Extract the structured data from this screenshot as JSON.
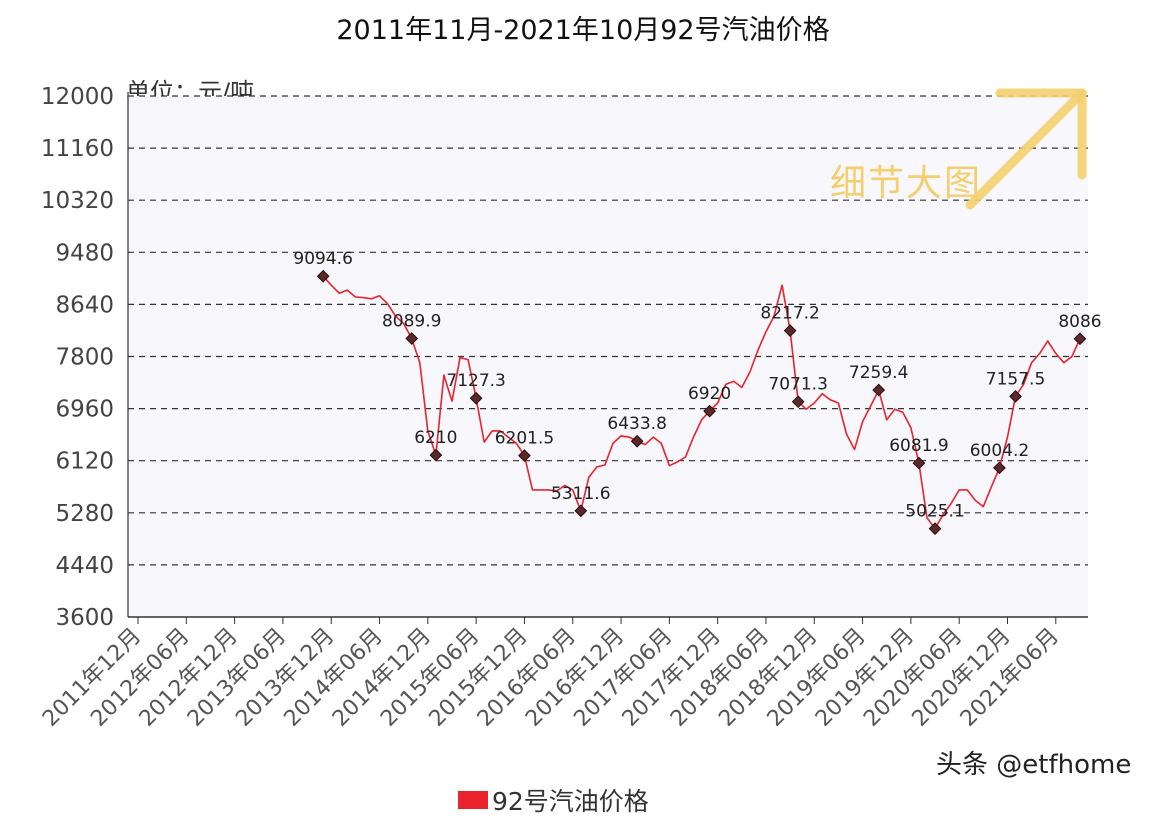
{
  "chart_data": {
    "type": "line",
    "title": "2011年11月-2021年10月92号汽油价格",
    "unit_label": "单位：元/吨",
    "ylim": [
      3600,
      12000
    ],
    "yticks": [
      12000,
      11160,
      10320,
      9480,
      8640,
      7800,
      6960,
      6120,
      5280,
      4440,
      3600
    ],
    "xticks": [
      "2011年12月",
      "2012年06月",
      "2012年12月",
      "2013年06月",
      "2013年12月",
      "2014年06月",
      "2014年12月",
      "2015年06月",
      "2015年12月",
      "2016年06月",
      "2016年12月",
      "2017年06月",
      "2017年12月",
      "2018年06月",
      "2018年12月",
      "2019年06月",
      "2019年12月",
      "2020年06月",
      "2020年12月",
      "2021年06月"
    ],
    "grid": "horizontal-dashed",
    "legend_position": "bottom",
    "series": [
      {
        "name": "92号汽油价格",
        "color": "#e8232b",
        "points": [
          [
            "2013-11",
            9095
          ],
          [
            "2013-12",
            8950
          ],
          [
            "2014-01",
            8820
          ],
          [
            "2014-02",
            8870
          ],
          [
            "2014-03",
            8760
          ],
          [
            "2014-04",
            8750
          ],
          [
            "2014-05",
            8730
          ],
          [
            "2014-06",
            8780
          ],
          [
            "2014-07",
            8650
          ],
          [
            "2014-08",
            8450
          ],
          [
            "2014-09",
            8330
          ],
          [
            "2014-10",
            8090
          ],
          [
            "2014-11",
            7700
          ],
          [
            "2014-12",
            6600
          ],
          [
            "2015-01",
            6210
          ],
          [
            "2015-02",
            7500
          ],
          [
            "2015-03",
            7080
          ],
          [
            "2015-04",
            7780
          ],
          [
            "2015-05",
            7750
          ],
          [
            "2015-06",
            7127
          ],
          [
            "2015-07",
            6420
          ],
          [
            "2015-08",
            6600
          ],
          [
            "2015-09",
            6600
          ],
          [
            "2015-10",
            6500
          ],
          [
            "2015-11",
            6400
          ],
          [
            "2015-12",
            6202
          ],
          [
            "2016-01",
            5650
          ],
          [
            "2016-02",
            5650
          ],
          [
            "2016-03",
            5650
          ],
          [
            "2016-04",
            5630
          ],
          [
            "2016-05",
            5720
          ],
          [
            "2016-06",
            5650
          ],
          [
            "2016-07",
            5312
          ],
          [
            "2016-08",
            5850
          ],
          [
            "2016-09",
            6020
          ],
          [
            "2016-10",
            6050
          ],
          [
            "2016-11",
            6400
          ],
          [
            "2016-12",
            6520
          ],
          [
            "2017-01",
            6500
          ],
          [
            "2017-02",
            6434
          ],
          [
            "2017-03",
            6380
          ],
          [
            "2017-04",
            6500
          ],
          [
            "2017-05",
            6400
          ],
          [
            "2017-06",
            6040
          ],
          [
            "2017-07",
            6100
          ],
          [
            "2017-08",
            6180
          ],
          [
            "2017-09",
            6500
          ],
          [
            "2017-10",
            6780
          ],
          [
            "2017-11",
            6920
          ],
          [
            "2017-12",
            7050
          ],
          [
            "2018-01",
            7350
          ],
          [
            "2018-02",
            7400
          ],
          [
            "2018-03",
            7300
          ],
          [
            "2018-04",
            7550
          ],
          [
            "2018-05",
            7900
          ],
          [
            "2018-06",
            8200
          ],
          [
            "2018-07",
            8450
          ],
          [
            "2018-08",
            8950
          ],
          [
            "2018-09",
            8217
          ],
          [
            "2018-10",
            7071
          ],
          [
            "2018-11",
            6950
          ],
          [
            "2018-12",
            7050
          ],
          [
            "2019-01",
            7200
          ],
          [
            "2019-02",
            7100
          ],
          [
            "2019-03",
            7050
          ],
          [
            "2019-04",
            6550
          ],
          [
            "2019-05",
            6300
          ],
          [
            "2019-06",
            6750
          ],
          [
            "2019-07",
            7000
          ],
          [
            "2019-08",
            7259
          ],
          [
            "2019-09",
            6780
          ],
          [
            "2019-10",
            6950
          ],
          [
            "2019-11",
            6900
          ],
          [
            "2019-12",
            6650
          ],
          [
            "2020-01",
            6082
          ],
          [
            "2020-02",
            5200
          ],
          [
            "2020-03",
            5025
          ],
          [
            "2020-04",
            5250
          ],
          [
            "2020-05",
            5430
          ],
          [
            "2020-06",
            5650
          ],
          [
            "2020-07",
            5650
          ],
          [
            "2020-08",
            5480
          ],
          [
            "2020-09",
            5380
          ],
          [
            "2020-10",
            5700
          ],
          [
            "2020-11",
            6004
          ],
          [
            "2020-12",
            6500
          ],
          [
            "2021-01",
            7158
          ],
          [
            "2021-02",
            7350
          ],
          [
            "2021-03",
            7700
          ],
          [
            "2021-04",
            7850
          ],
          [
            "2021-05",
            8050
          ],
          [
            "2021-06",
            7850
          ],
          [
            "2021-07",
            7700
          ],
          [
            "2021-08",
            7800
          ],
          [
            "2021-09",
            8086
          ]
        ]
      }
    ],
    "annotations": [
      {
        "x": "2013-11",
        "value": 9094.6,
        "label": "9094.6"
      },
      {
        "x": "2014-10",
        "value": 8089.9,
        "label": "8089.9"
      },
      {
        "x": "2015-01",
        "value": 6210,
        "label": "6210"
      },
      {
        "x": "2015-06",
        "value": 7127.3,
        "label": "7127.3"
      },
      {
        "x": "2015-12",
        "value": 6201.5,
        "label": "6201.5"
      },
      {
        "x": "2016-07",
        "value": 5311.6,
        "label": "5311.6"
      },
      {
        "x": "2017-02",
        "value": 6433.8,
        "label": "6433.8"
      },
      {
        "x": "2017-11",
        "value": 6920,
        "label": "6920"
      },
      {
        "x": "2018-09",
        "value": 8217.2,
        "label": "8217.2"
      },
      {
        "x": "2018-10",
        "value": 7071.3,
        "label": "7071.3"
      },
      {
        "x": "2019-08",
        "value": 7259.4,
        "label": "7259.4"
      },
      {
        "x": "2020-01",
        "value": 6081.9,
        "label": "6081.9"
      },
      {
        "x": "2020-03",
        "value": 5025.1,
        "label": "5025.1"
      },
      {
        "x": "2020-11",
        "value": 6004.2,
        "label": "6004.2"
      },
      {
        "x": "2021-01",
        "value": 7157.5,
        "label": "7157.5"
      },
      {
        "x": "2021-09",
        "value": 8086,
        "label": "8086"
      }
    ]
  },
  "overlay": {
    "detail_text": "细节大图",
    "arrow_icon": "diagonal-arrow-up-right-icon",
    "arrow_color": "#f5cf6e",
    "watermark": "头条 @etfhome"
  }
}
